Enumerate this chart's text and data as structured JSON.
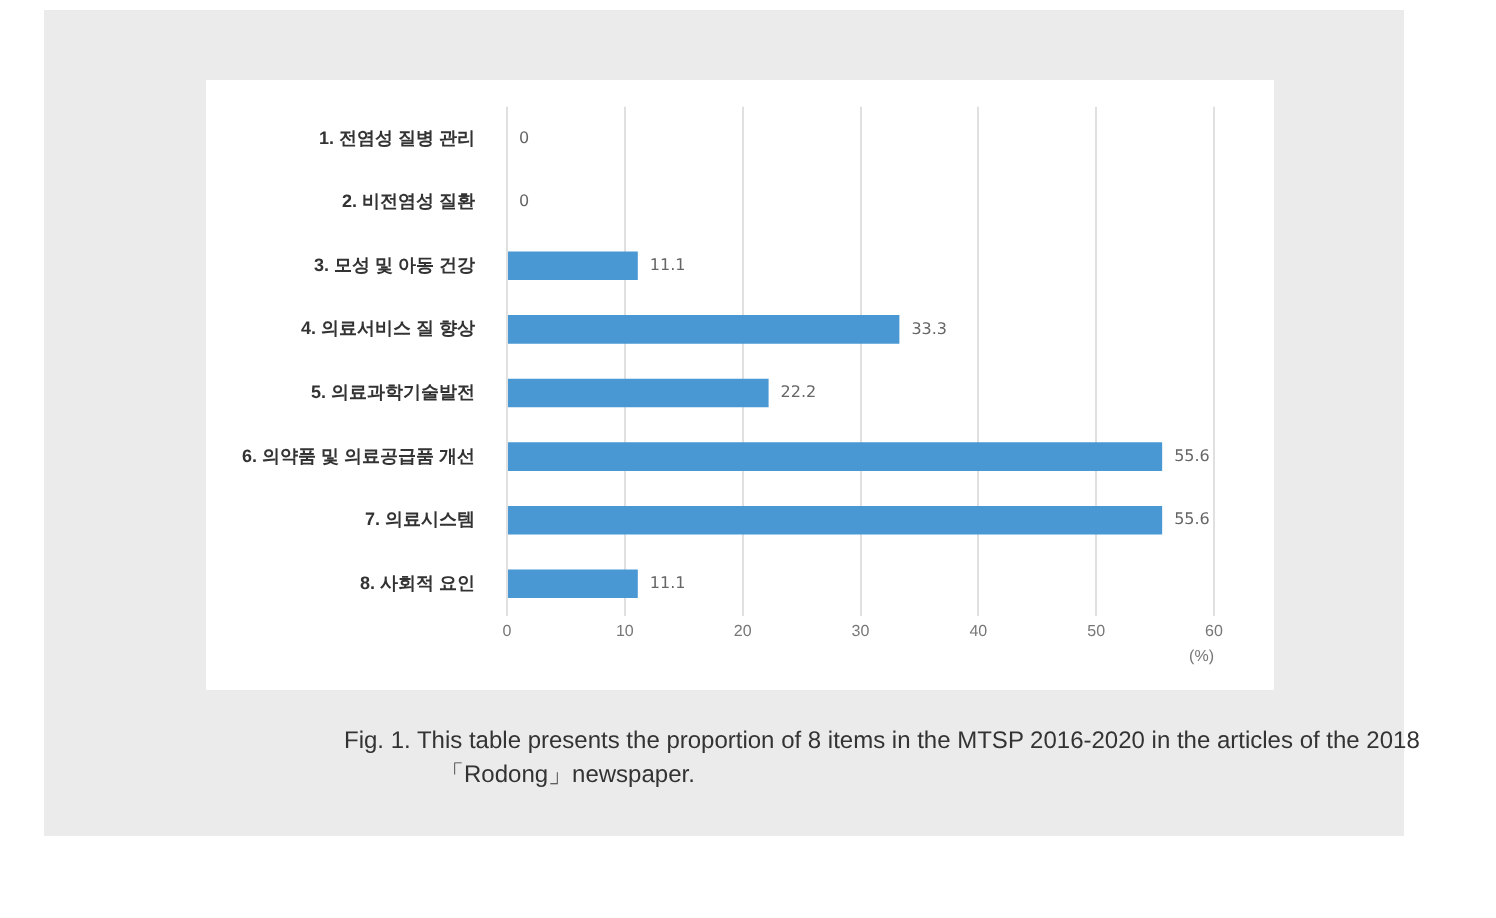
{
  "chart_data": {
    "type": "bar",
    "orientation": "horizontal",
    "categories": [
      "1. 전염성 질병 관리",
      "2. 비전염성 질환",
      "3. 모성 및 아동 건강",
      "4. 의료서비스 질 향상",
      "5. 의료과학기술발전",
      "6. 의약품 및 의료공급품 개선",
      "7. 의료시스템",
      "8. 사회적 요인"
    ],
    "values": [
      0,
      0,
      11.1,
      33.3,
      22.2,
      55.6,
      55.6,
      11.1
    ],
    "color": "#4a98d3",
    "xlim": [
      0,
      60
    ],
    "xticks": [
      0,
      10,
      20,
      30,
      40,
      50,
      60
    ],
    "xlabel": "(%)",
    "grid": "x",
    "data_labels": true,
    "legend": false,
    "annotations": [
      "Fig. 1. This table presents the proportion of 8 items in the MTSP 2016-2020 in the articles of the 2018 「Rodong」newspaper."
    ]
  }
}
